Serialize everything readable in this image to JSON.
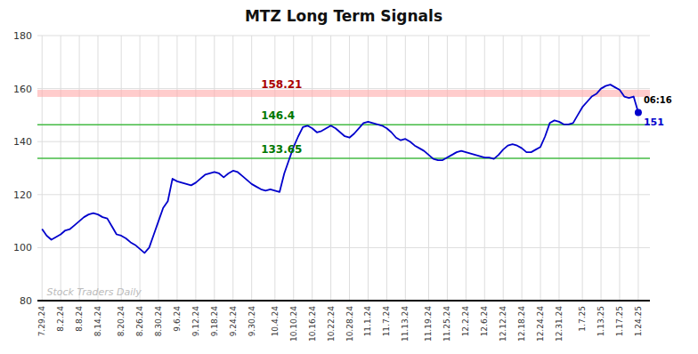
{
  "chart_data": {
    "type": "line",
    "title": "MTZ Long Term Signals",
    "categories": [
      "7.29.24",
      null,
      null,
      null,
      "8.2.24",
      null,
      null,
      null,
      "8.8.24",
      null,
      null,
      null,
      "8.14.24",
      null,
      null,
      null,
      null,
      "8.20.24",
      null,
      null,
      null,
      "8.26.24",
      null,
      null,
      null,
      "8.30.24",
      null,
      null,
      null,
      "9.6.24",
      null,
      null,
      null,
      "9.12.24",
      null,
      null,
      null,
      "9.18.24",
      null,
      null,
      null,
      "9.24.24",
      null,
      null,
      null,
      "9.30.24",
      null,
      null,
      null,
      null,
      "10.4.24",
      null,
      null,
      null,
      "10.10.24",
      null,
      null,
      null,
      "10.16.24",
      null,
      null,
      null,
      "10.22.24",
      null,
      null,
      null,
      "10.28.24",
      null,
      null,
      null,
      "11.1.24",
      null,
      null,
      null,
      "11.7.24",
      null,
      null,
      null,
      "11.13.24",
      null,
      null,
      null,
      null,
      "11.19.24",
      null,
      null,
      null,
      "11.25.24",
      null,
      null,
      null,
      "12.2.24",
      null,
      null,
      null,
      "12.6.24",
      null,
      null,
      null,
      "12.12.24",
      null,
      null,
      null,
      "12.18.24",
      null,
      null,
      null,
      "12.24.24",
      null,
      null,
      null,
      "12.31.24",
      null,
      null,
      null,
      null,
      "1.7.25",
      null,
      null,
      null,
      "1.13.25",
      null,
      null,
      null,
      "1.17.25",
      null,
      null,
      null,
      "1.24.25"
    ],
    "series": [
      {
        "color": "#0000cc",
        "values": [
          107,
          104.5,
          103,
          104,
          105,
          106.5,
          107,
          108.5,
          110,
          111.5,
          112.5,
          113,
          112.5,
          111.5,
          111,
          108,
          105,
          104.5,
          103.5,
          102,
          101,
          99.5,
          98,
          100,
          105,
          110,
          115,
          117.5,
          126,
          125,
          124.5,
          124,
          123.5,
          124.5,
          126,
          127.5,
          128,
          128.5,
          128,
          126.5,
          128,
          129,
          128.5,
          127,
          125.5,
          124,
          123,
          122,
          121.5,
          122,
          121.5,
          121,
          128,
          133,
          138,
          142,
          145.5,
          146,
          145,
          143.5,
          144,
          145,
          146,
          145,
          143.5,
          142,
          141.5,
          143,
          145,
          147,
          147.5,
          147,
          146.5,
          146,
          145,
          143.5,
          141.5,
          140.5,
          141,
          140,
          138.5,
          137.5,
          136.5,
          135,
          133.5,
          133,
          133,
          134,
          135,
          136,
          136.5,
          136,
          135.5,
          135,
          134.5,
          134,
          134,
          133.5,
          135,
          137,
          138.5,
          139,
          138.5,
          137.5,
          136,
          136,
          137,
          138,
          142,
          147,
          148,
          147.5,
          146.5,
          146.5,
          147,
          150,
          153,
          155,
          157,
          158,
          160,
          161,
          161.5,
          160.5,
          159.5,
          157,
          156.5,
          157,
          151
        ]
      }
    ],
    "ylim": [
      80,
      180
    ],
    "yticks": [
      80,
      100,
      120,
      140,
      160,
      180
    ],
    "grid": true,
    "reference_lines": [
      {
        "y": 158.21,
        "color": "#ffaaaa",
        "line_style": "band"
      },
      {
        "y": 146.4,
        "color": "#44bb44",
        "line_style": "solid"
      },
      {
        "y": 133.65,
        "color": "#44bb44",
        "line_style": "solid"
      }
    ],
    "annotations": [
      {
        "text": "158.21",
        "y": 158.21,
        "color": "#aa0000"
      },
      {
        "text": "146.4",
        "y": 146.4,
        "color": "#007700"
      },
      {
        "text": "133.65",
        "y": 133.65,
        "color": "#007700"
      }
    ],
    "end_labels": {
      "text": "06:16",
      "value_label": "151",
      "color": "#0000cc"
    },
    "watermark": {
      "text": "Stock Traders Daily",
      "color": "#bbbbbb"
    }
  }
}
